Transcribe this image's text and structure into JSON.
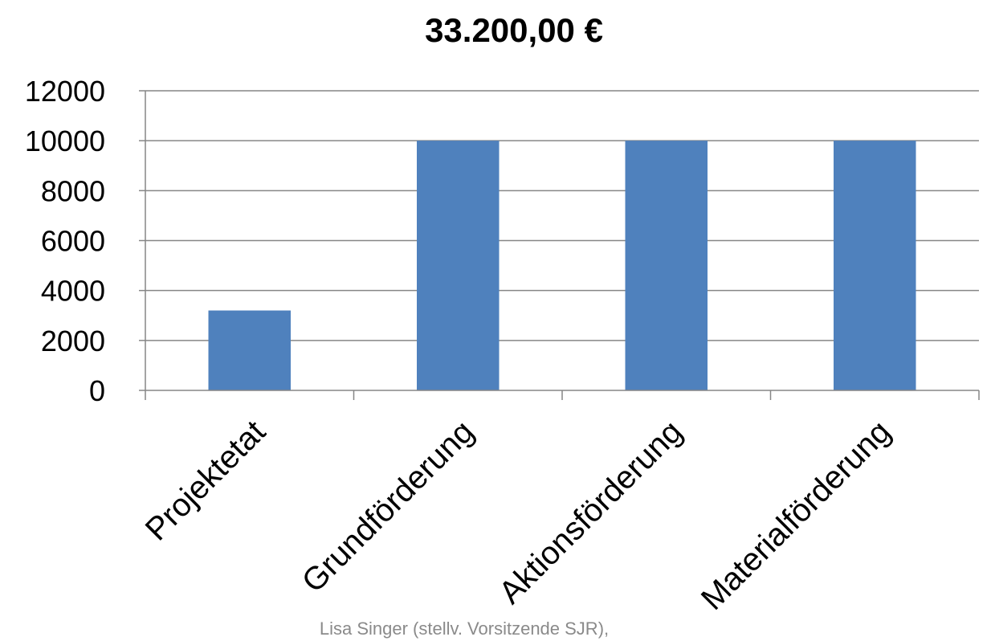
{
  "chart_data": {
    "type": "bar",
    "title": "33.200,00 €",
    "xlabel": "",
    "ylabel": "",
    "categories": [
      "Projektetat",
      "Grundförderung",
      "Aktionsförderung",
      "Materialförderung"
    ],
    "values": [
      3200,
      10000,
      10000,
      10000
    ],
    "ylim": [
      0,
      12000
    ],
    "yticks": [
      0,
      2000,
      4000,
      6000,
      8000,
      10000,
      12000
    ],
    "grid": true,
    "legend": "none",
    "bar_color": "#4F81BD"
  },
  "footer": {
    "text": "Lisa Singer (stellv. Vorsitzende SJR),"
  }
}
